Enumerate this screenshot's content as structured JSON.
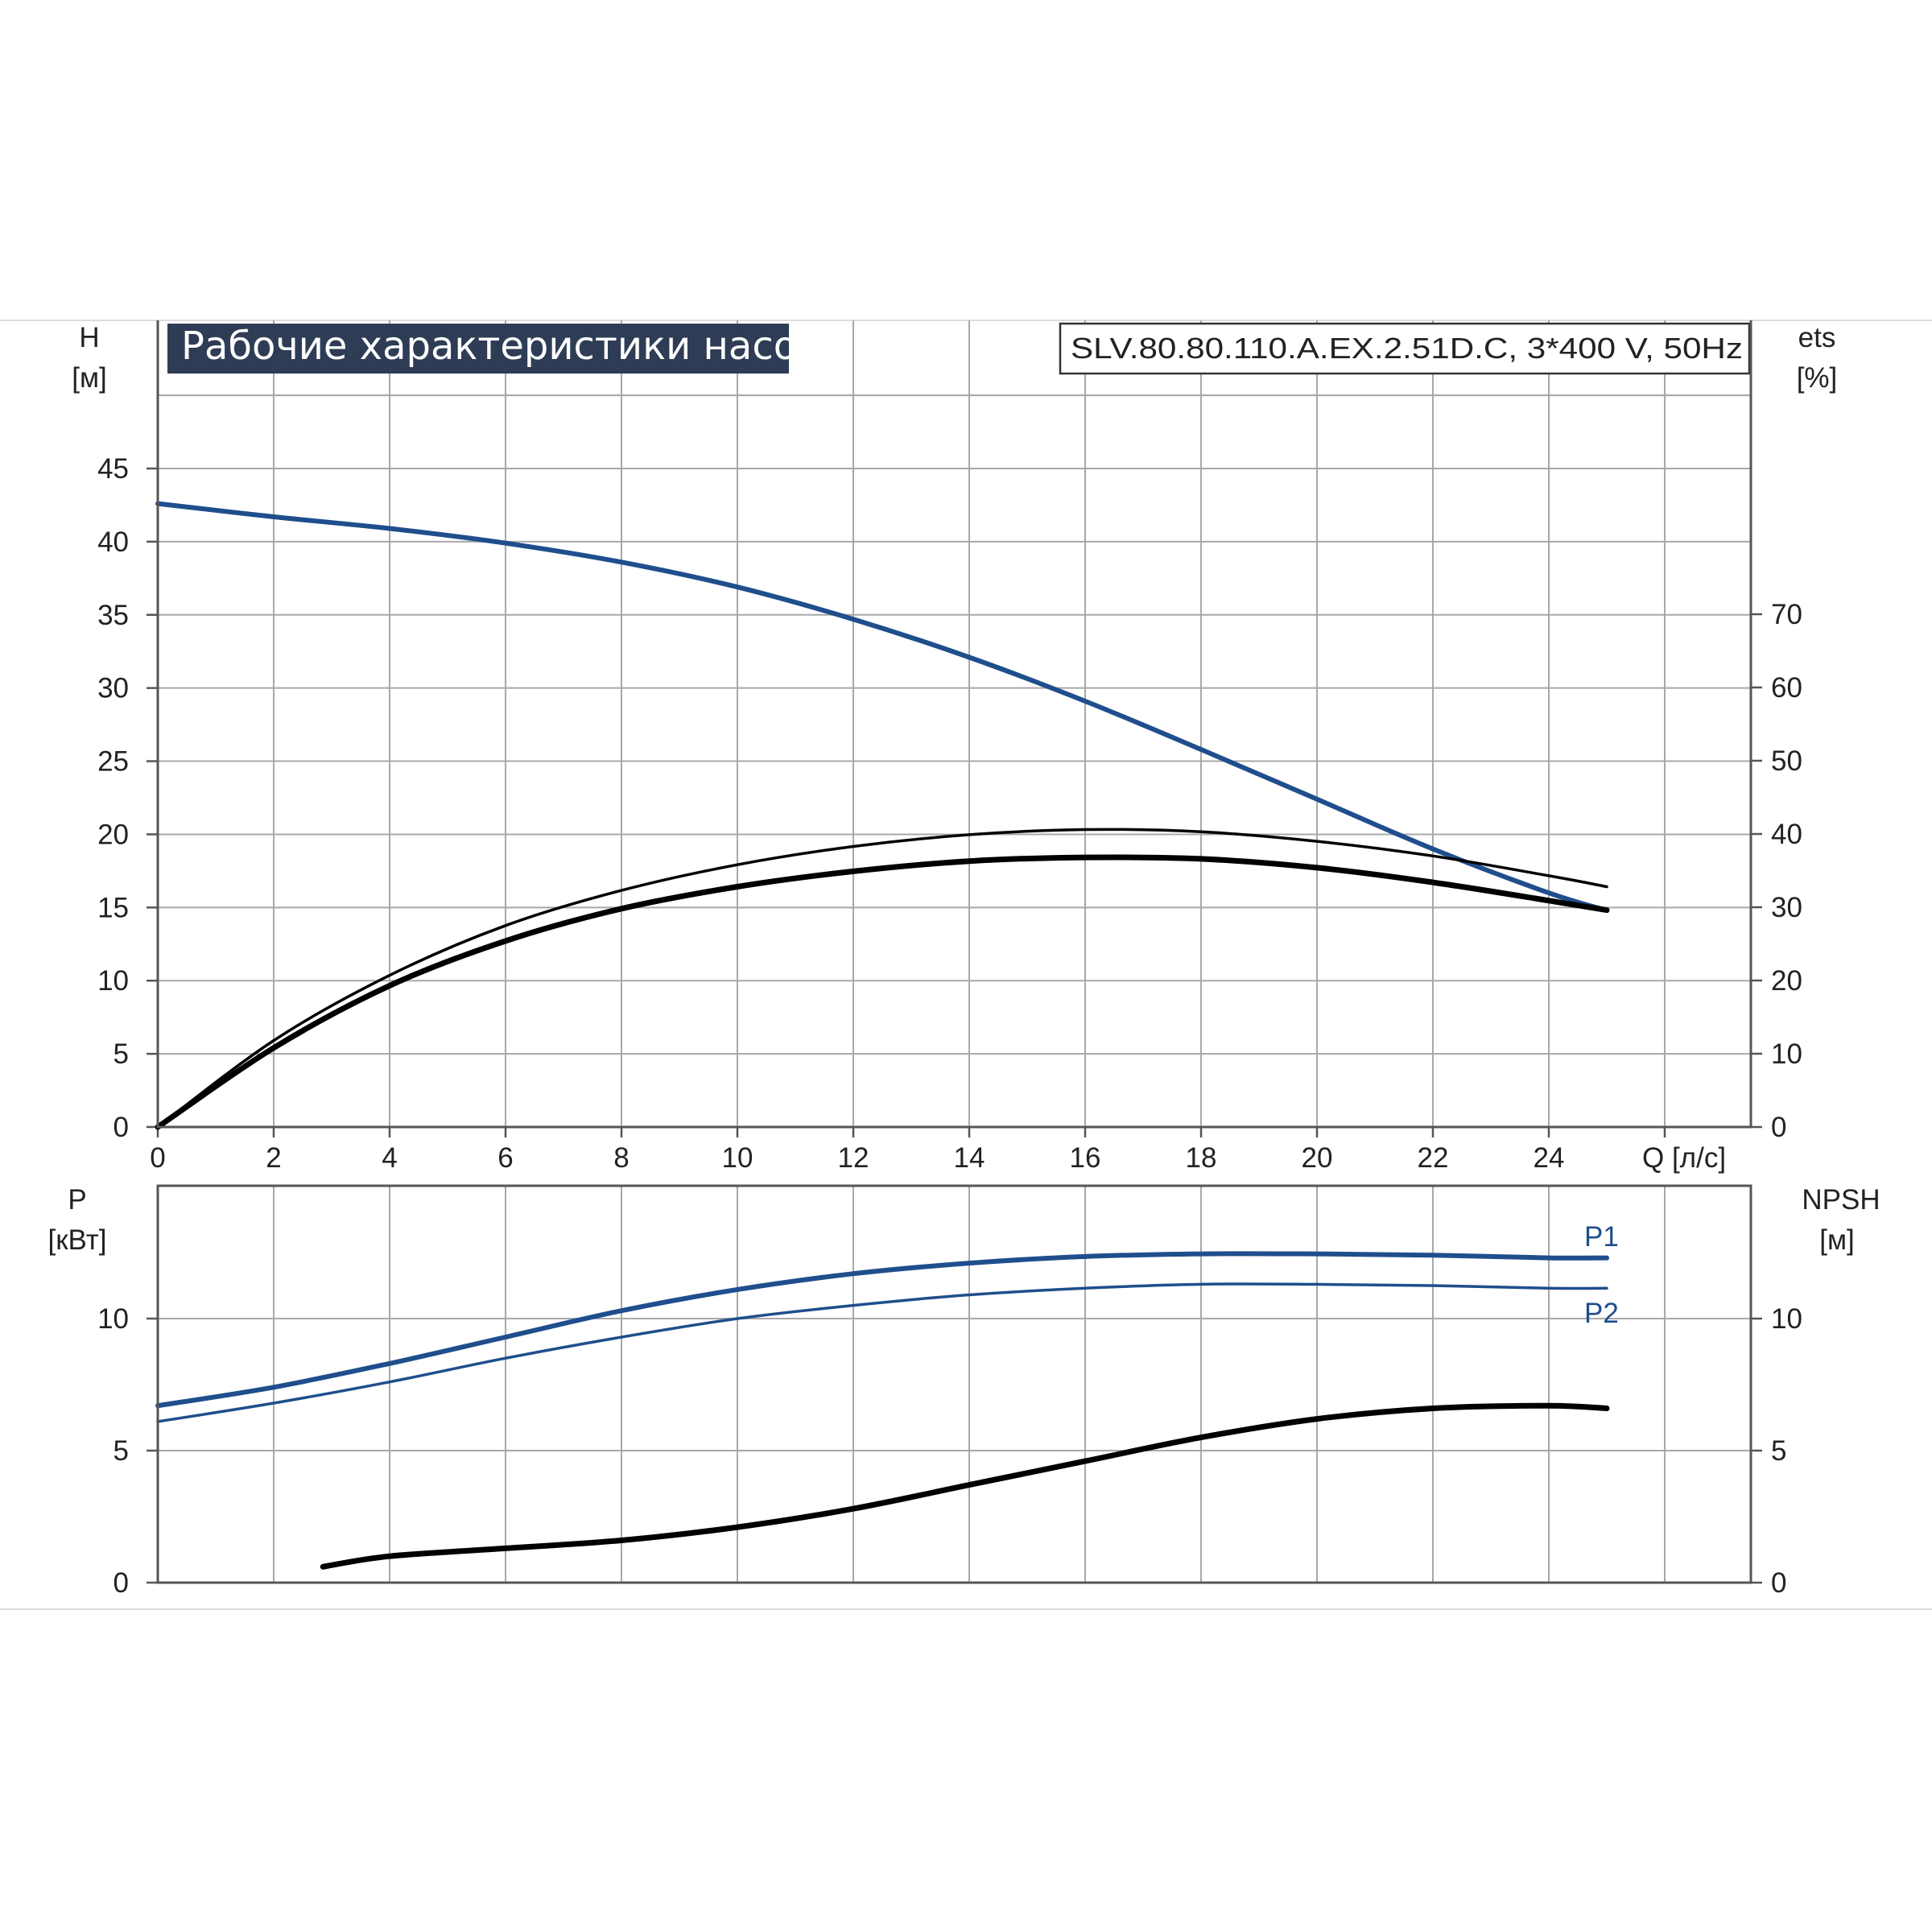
{
  "title": "Рабочие характеристики насоса",
  "model": "SLV.80.80.110.A.EX.2.51D.C, 3*400 V, 50Hz",
  "colors": {
    "blue": "#1f4e8c",
    "black": "#000000",
    "grid": "#a8a8a8",
    "title_bg": "#2e3d55"
  },
  "chart_data": [
    {
      "type": "line",
      "panel": "upper",
      "left_axis": {
        "label": "H",
        "unit": "[м]",
        "ylim": [
          0,
          50
        ],
        "ticks": [
          "0",
          "5",
          "10",
          "15",
          "20",
          "25",
          "30",
          "35",
          "40",
          "45"
        ]
      },
      "right_axis": {
        "label": "ets",
        "unit": "[%]",
        "ylim": [
          0,
          100
        ],
        "ticks": [
          "0",
          "10",
          "20",
          "30",
          "40",
          "50",
          "60",
          "70"
        ]
      },
      "x_axis": {
        "label": "Q [л/с]",
        "xlim": [
          0,
          27.5
        ],
        "ticks": [
          "0",
          "2",
          "4",
          "6",
          "8",
          "10",
          "12",
          "14",
          "16",
          "18",
          "20",
          "22",
          "24"
        ]
      },
      "grid": true,
      "series": [
        {
          "axis": "left",
          "color": "blue",
          "width": 6,
          "x": [
            0,
            2,
            4,
            6,
            8,
            10,
            12,
            14,
            16,
            18,
            20,
            22,
            24,
            25
          ],
          "y": [
            42.6,
            41.7,
            40.9,
            39.9,
            38.6,
            36.9,
            34.7,
            32.1,
            29.1,
            25.8,
            22.4,
            19.0,
            16.0,
            14.8
          ]
        },
        {
          "axis": "right",
          "color": "black",
          "width": 3.5,
          "x": [
            0,
            2,
            4,
            6,
            8,
            10,
            12,
            14,
            16,
            18,
            20,
            22,
            24,
            25
          ],
          "y": [
            0,
            11.8,
            20.7,
            27.5,
            32.3,
            35.8,
            38.3,
            39.9,
            40.6,
            40.3,
            39.0,
            37.0,
            34.3,
            32.8
          ]
        },
        {
          "axis": "right",
          "color": "black",
          "width": 7,
          "x": [
            0,
            2,
            4,
            6,
            8,
            10,
            12,
            14,
            16,
            18,
            20,
            22,
            24,
            25
          ],
          "y": [
            0,
            10.8,
            19.3,
            25.4,
            29.8,
            32.8,
            34.9,
            36.3,
            36.8,
            36.6,
            35.4,
            33.4,
            30.9,
            29.6
          ]
        }
      ]
    },
    {
      "type": "line",
      "panel": "lower",
      "left_axis": {
        "label": "P",
        "unit": "[кВт]",
        "ylim": [
          0,
          15
        ],
        "ticks": [
          "0",
          "5",
          "10"
        ]
      },
      "right_axis": {
        "label": "NPSH",
        "unit": "[м]",
        "ylim": [
          0,
          15
        ],
        "ticks": [
          "0",
          "5",
          "10"
        ]
      },
      "x_axis": {
        "xlim": [
          0,
          27.5
        ]
      },
      "grid": true,
      "series": [
        {
          "name": "P1",
          "axis": "left",
          "color": "blue",
          "width": 6,
          "x": [
            0,
            2,
            4,
            6,
            8,
            10,
            12,
            14,
            16,
            18,
            20,
            22,
            24,
            25
          ],
          "y": [
            6.7,
            7.4,
            8.3,
            9.3,
            10.3,
            11.1,
            11.7,
            12.1,
            12.35,
            12.45,
            12.45,
            12.4,
            12.3,
            12.3
          ]
        },
        {
          "name": "P2",
          "axis": "left",
          "color": "blue",
          "width": 3.5,
          "x": [
            0,
            2,
            4,
            6,
            8,
            10,
            12,
            14,
            16,
            18,
            20,
            22,
            24,
            25
          ],
          "y": [
            6.1,
            6.8,
            7.6,
            8.5,
            9.3,
            10.0,
            10.5,
            10.9,
            11.15,
            11.3,
            11.3,
            11.25,
            11.15,
            11.15
          ]
        },
        {
          "axis": "right",
          "color": "black",
          "width": 7,
          "x": [
            2.85,
            4,
            6,
            8,
            10,
            12,
            14,
            16,
            18,
            20,
            22,
            24,
            25
          ],
          "y": [
            0.6,
            1.0,
            1.3,
            1.6,
            2.1,
            2.8,
            3.7,
            4.6,
            5.5,
            6.2,
            6.6,
            6.7,
            6.6
          ]
        }
      ]
    }
  ]
}
